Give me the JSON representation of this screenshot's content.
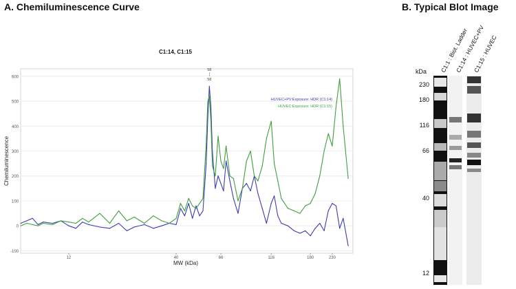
{
  "panel_a": {
    "title": "A. Chemiluminescence Curve"
  },
  "panel_b": {
    "title": "B.   Typical Blot Image"
  },
  "chart_data": {
    "type": "line",
    "title": "C1:14, C1:15",
    "xlabel": "MW (kDa)",
    "ylabel": "Chemiluminescence",
    "x_scale": "log",
    "xlim": [
      7,
      290
    ],
    "ylim": [
      -110,
      630
    ],
    "y_ticks": [
      -100,
      0,
      100,
      200,
      300,
      400,
      500,
      600
    ],
    "x_ticks": [
      12,
      40,
      66,
      116,
      180,
      230
    ],
    "peak_annotation": {
      "x": 58,
      "label_top": "58",
      "label_bottom": "58"
    },
    "legend_position": "top-right",
    "series": [
      {
        "name": "HUVEC+PV:Exposure: HDR (C1:14)",
        "color": "#3b3bb0",
        "x": [
          7,
          7.5,
          8,
          8.5,
          9,
          10,
          11,
          12,
          13,
          14,
          15,
          17,
          19,
          21,
          23,
          25,
          28,
          31,
          34,
          37,
          40,
          42,
          44,
          46,
          48,
          50,
          52,
          54,
          56,
          57,
          58,
          59,
          60,
          62,
          64,
          66,
          68,
          70,
          73,
          76,
          80,
          84,
          88,
          92,
          96,
          100,
          105,
          110,
          116,
          120,
          125,
          130,
          140,
          150,
          160,
          170,
          180,
          190,
          200,
          210,
          220,
          230,
          240,
          250,
          260,
          275
        ],
        "y": [
          10,
          20,
          30,
          5,
          15,
          10,
          20,
          0,
          -10,
          15,
          5,
          -5,
          -10,
          10,
          -20,
          -5,
          5,
          -10,
          0,
          10,
          5,
          70,
          40,
          90,
          30,
          80,
          40,
          60,
          250,
          430,
          560,
          480,
          300,
          150,
          200,
          170,
          140,
          260,
          180,
          110,
          50,
          150,
          170,
          140,
          200,
          130,
          70,
          10,
          90,
          120,
          40,
          10,
          0,
          -20,
          -30,
          -20,
          -40,
          -10,
          10,
          -20,
          60,
          90,
          80,
          -10,
          30,
          -80
        ]
      },
      {
        "name": "HUVEC:Exposure: HDR (C1:15)",
        "color": "#3f9e3f",
        "x": [
          7,
          7.5,
          8,
          8.5,
          9,
          10,
          11,
          12,
          13,
          14,
          15,
          17,
          19,
          21,
          23,
          25,
          28,
          31,
          34,
          37,
          40,
          42,
          44,
          46,
          48,
          50,
          52,
          54,
          56,
          57,
          58,
          59,
          60,
          62,
          64,
          66,
          68,
          70,
          73,
          76,
          80,
          84,
          88,
          92,
          96,
          100,
          105,
          110,
          116,
          120,
          125,
          130,
          140,
          150,
          160,
          170,
          180,
          190,
          200,
          210,
          220,
          230,
          240,
          250,
          260,
          275
        ],
        "y": [
          0,
          10,
          5,
          0,
          10,
          5,
          20,
          15,
          10,
          30,
          15,
          50,
          10,
          60,
          20,
          35,
          10,
          40,
          20,
          10,
          30,
          90,
          60,
          110,
          80,
          70,
          90,
          110,
          330,
          500,
          520,
          420,
          240,
          200,
          360,
          260,
          230,
          320,
          200,
          190,
          100,
          150,
          260,
          300,
          200,
          180,
          240,
          350,
          420,
          250,
          180,
          110,
          70,
          60,
          50,
          80,
          90,
          130,
          200,
          300,
          370,
          320,
          480,
          590,
          400,
          190
        ]
      }
    ]
  },
  "blot": {
    "axis_unit": "kDa",
    "marker_labels": [
      "230",
      "180",
      "116",
      "66",
      "40",
      "12"
    ],
    "lane_labels": [
      "C1:1 : Biot. Ladder",
      "C1:14 : HUVEC+PV",
      "C1:15 : HUVEC"
    ]
  }
}
